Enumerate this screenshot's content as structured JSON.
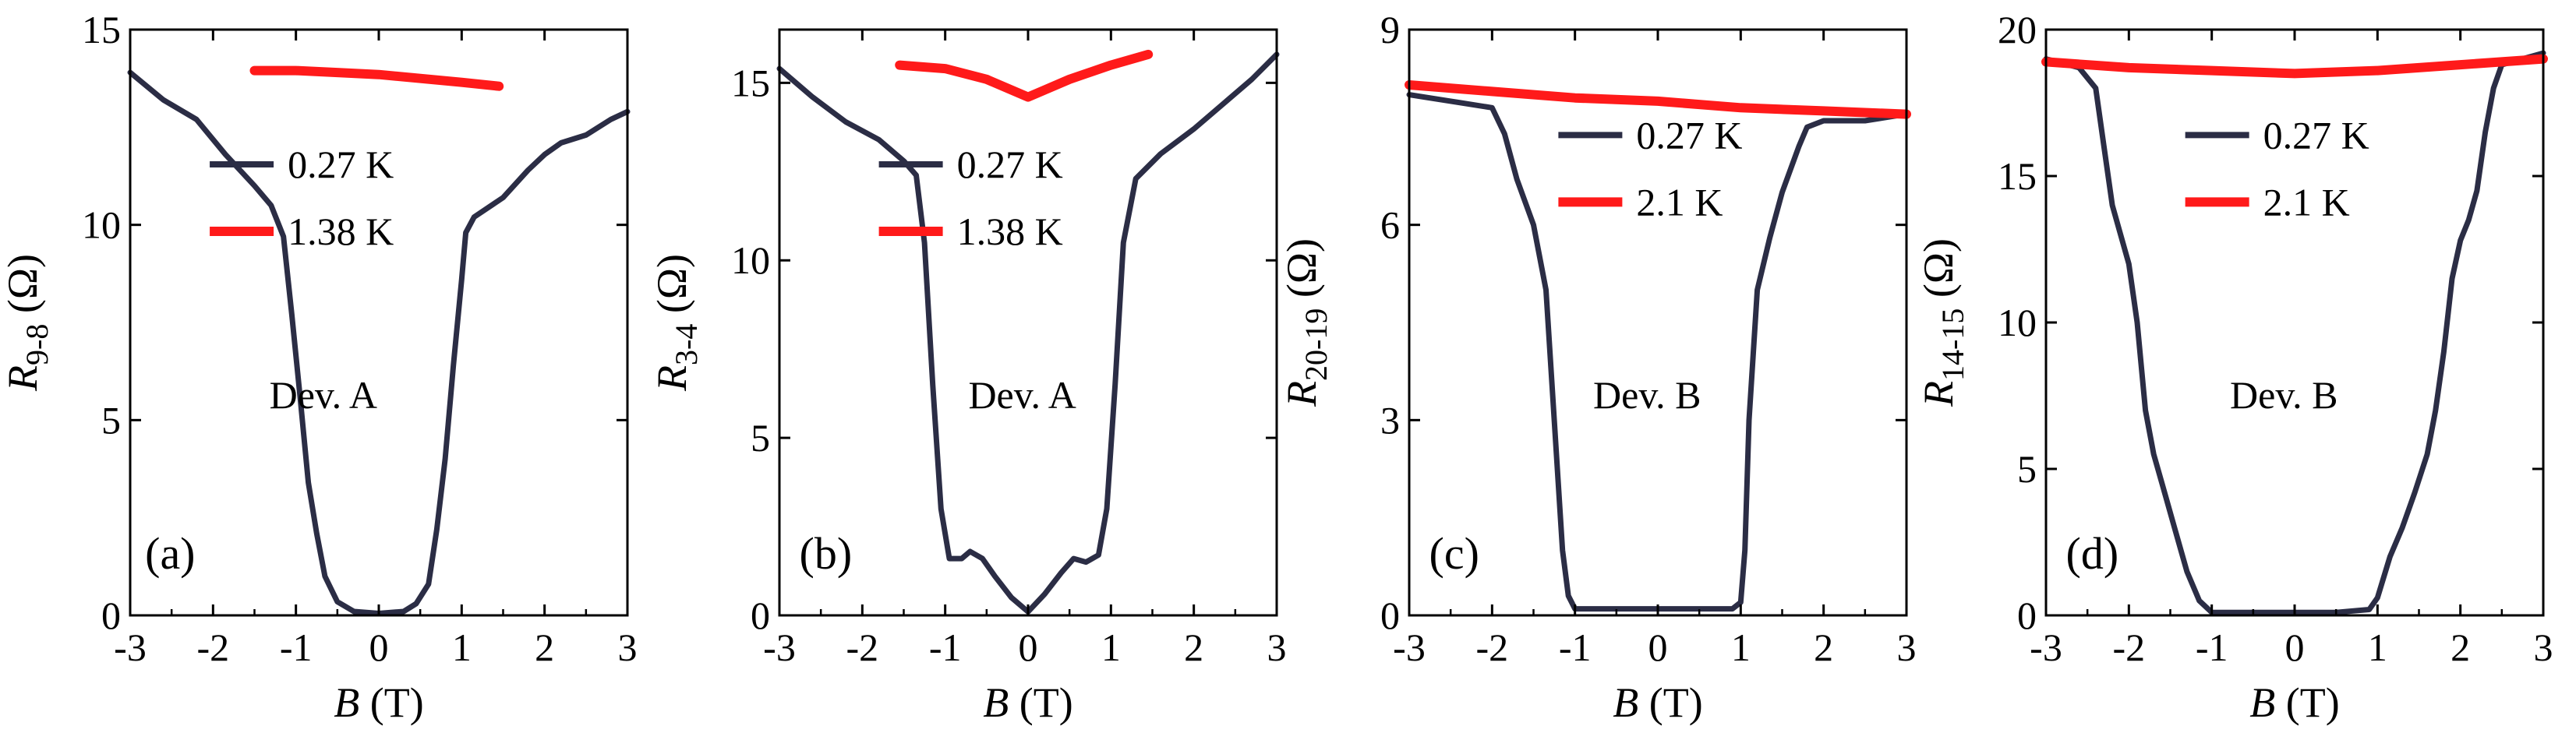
{
  "figure": {
    "description_free": true
  },
  "chart_data": [
    {
      "type": "line",
      "panel_label": "(a)",
      "annotation": "Dev. A",
      "xlabel": {
        "symbol": "B",
        "unit": " (T)"
      },
      "ylabel": {
        "symbol": "R",
        "sub": "9-8",
        "unit": " (Ω)"
      },
      "xlim": [
        -3,
        3
      ],
      "ylim": [
        0,
        15
      ],
      "xticks": [
        "-3",
        "-2",
        "-1",
        "0",
        "1",
        "2",
        "3"
      ],
      "xtick_values": [
        -3,
        -2,
        -1,
        0,
        1,
        2,
        3
      ],
      "yticks": [
        "0",
        "5",
        "10",
        "15"
      ],
      "ytick_values": [
        0,
        5,
        10,
        15
      ],
      "series": [
        {
          "name": "0.27 K",
          "color": "#2b2d45",
          "x": [
            -3.0,
            -2.6,
            -2.2,
            -1.85,
            -1.5,
            -1.3,
            -1.15,
            -1.05,
            -0.95,
            -0.85,
            -0.75,
            -0.65,
            -0.5,
            -0.3,
            0,
            0.3,
            0.45,
            0.6,
            0.7,
            0.8,
            0.9,
            1.0,
            1.05,
            1.15,
            1.5,
            1.8,
            2.0,
            2.2,
            2.5,
            2.8,
            3.0
          ],
          "y": [
            13.9,
            13.2,
            12.7,
            11.8,
            11.0,
            10.5,
            9.7,
            7.7,
            5.6,
            3.4,
            2.1,
            1.0,
            0.35,
            0.1,
            0.05,
            0.1,
            0.3,
            0.8,
            2.2,
            4.0,
            6.4,
            8.6,
            9.8,
            10.2,
            10.7,
            11.4,
            11.8,
            12.1,
            12.3,
            12.7,
            12.9
          ]
        },
        {
          "name": "1.38 K",
          "color": "#ff1a1a",
          "x": [
            -1.5,
            -1.0,
            -0.5,
            0,
            0.5,
            1.0,
            1.45
          ],
          "y": [
            13.95,
            13.95,
            13.9,
            13.85,
            13.75,
            13.65,
            13.55
          ]
        }
      ]
    },
    {
      "type": "line",
      "panel_label": "(b)",
      "annotation": "Dev. A",
      "xlabel": {
        "symbol": "B",
        "unit": " (T)"
      },
      "ylabel": {
        "symbol": "R",
        "sub": "3-4",
        "unit": " (Ω)"
      },
      "xlim": [
        -3,
        3
      ],
      "ylim": [
        0,
        16.5
      ],
      "xticks": [
        "-3",
        "-2",
        "-1",
        "0",
        "1",
        "2",
        "3"
      ],
      "xtick_values": [
        -3,
        -2,
        -1,
        0,
        1,
        2,
        3
      ],
      "yticks": [
        "0",
        "5",
        "10",
        "15"
      ],
      "ytick_values": [
        0,
        5,
        10,
        15
      ],
      "series": [
        {
          "name": "0.27 K",
          "color": "#2b2d45",
          "x": [
            -3.0,
            -2.6,
            -2.2,
            -1.8,
            -1.5,
            -1.35,
            -1.25,
            -1.15,
            -1.05,
            -0.95,
            -0.8,
            -0.7,
            -0.55,
            -0.4,
            -0.2,
            0,
            0.2,
            0.4,
            0.55,
            0.7,
            0.85,
            0.95,
            1.05,
            1.15,
            1.3,
            1.6,
            2.0,
            2.4,
            2.7,
            3.0
          ],
          "y": [
            15.4,
            14.6,
            13.9,
            13.4,
            12.8,
            12.4,
            10.5,
            6.5,
            3.0,
            1.6,
            1.6,
            1.8,
            1.6,
            1.1,
            0.5,
            0.1,
            0.6,
            1.2,
            1.6,
            1.5,
            1.7,
            3.0,
            6.5,
            10.5,
            12.3,
            13.0,
            13.7,
            14.5,
            15.1,
            15.8
          ]
        },
        {
          "name": "1.38 K",
          "color": "#ff1a1a",
          "x": [
            -1.55,
            -1.0,
            -0.5,
            -0.2,
            0,
            0.2,
            0.5,
            1.0,
            1.45
          ],
          "y": [
            15.5,
            15.4,
            15.1,
            14.8,
            14.6,
            14.8,
            15.1,
            15.5,
            15.8
          ]
        }
      ]
    },
    {
      "type": "line",
      "panel_label": "(c)",
      "annotation": "Dev. B",
      "xlabel": {
        "symbol": "B",
        "unit": " (T)"
      },
      "ylabel": {
        "symbol": "R",
        "sub": "20-19",
        "unit": " (Ω)"
      },
      "xlim": [
        -3,
        3
      ],
      "ylim": [
        0,
        9
      ],
      "xticks": [
        "-3",
        "-2",
        "-1",
        "0",
        "1",
        "2",
        "3"
      ],
      "xtick_values": [
        -3,
        -2,
        -1,
        0,
        1,
        2,
        3
      ],
      "yticks": [
        "0",
        "3",
        "6",
        "9"
      ],
      "ytick_values": [
        0,
        3,
        6,
        9
      ],
      "series": [
        {
          "name": "0.27 K",
          "color": "#2b2d45",
          "x": [
            -3.0,
            -2.5,
            -2.0,
            -1.85,
            -1.7,
            -1.5,
            -1.35,
            -1.25,
            -1.15,
            -1.08,
            -1.0,
            -0.9,
            -0.5,
            0,
            0.5,
            0.9,
            1.0,
            1.05,
            1.1,
            1.2,
            1.35,
            1.5,
            1.7,
            1.8,
            2.0,
            2.5,
            3.0
          ],
          "y": [
            8.0,
            7.9,
            7.8,
            7.4,
            6.7,
            6.0,
            5.0,
            3.0,
            1.0,
            0.3,
            0.1,
            0.1,
            0.1,
            0.1,
            0.1,
            0.1,
            0.2,
            1.0,
            3.0,
            5.0,
            5.8,
            6.5,
            7.2,
            7.5,
            7.6,
            7.6,
            7.7
          ]
        },
        {
          "name": "2.1 K",
          "color": "#ff1a1a",
          "x": [
            -3.0,
            -2.0,
            -1.0,
            0,
            1.0,
            2.0,
            3.0
          ],
          "y": [
            8.15,
            8.05,
            7.95,
            7.9,
            7.8,
            7.75,
            7.7
          ]
        }
      ]
    },
    {
      "type": "line",
      "panel_label": "(d)",
      "annotation": "Dev. B",
      "xlabel": {
        "symbol": "B",
        "unit": " (T)"
      },
      "ylabel": {
        "symbol": "R",
        "sub": "14-15",
        "unit": " (Ω)"
      },
      "xlim": [
        -3,
        3
      ],
      "ylim": [
        0,
        20
      ],
      "xticks": [
        "-3",
        "-2",
        "-1",
        "0",
        "1",
        "2",
        "3"
      ],
      "xtick_values": [
        -3,
        -2,
        -1,
        0,
        1,
        2,
        3
      ],
      "yticks": [
        "0",
        "5",
        "10",
        "15",
        "20"
      ],
      "ytick_values": [
        0,
        5,
        10,
        15,
        20
      ],
      "series": [
        {
          "name": "0.27 K",
          "color": "#2b2d45",
          "x": [
            -3.0,
            -2.6,
            -2.4,
            -2.3,
            -2.2,
            -2.1,
            -2.0,
            -1.9,
            -1.8,
            -1.7,
            -1.6,
            -1.45,
            -1.3,
            -1.15,
            -1.0,
            -0.5,
            0,
            0.5,
            0.9,
            1.0,
            1.15,
            1.3,
            1.45,
            1.6,
            1.7,
            1.8,
            1.9,
            2.0,
            2.1,
            2.2,
            2.3,
            2.4,
            2.5,
            3.0
          ],
          "y": [
            19.0,
            18.7,
            18.0,
            16.0,
            14.0,
            13.0,
            12.0,
            10.0,
            7.0,
            5.5,
            4.5,
            3.0,
            1.5,
            0.5,
            0.1,
            0.1,
            0.1,
            0.1,
            0.2,
            0.6,
            2.0,
            3.0,
            4.2,
            5.5,
            7.0,
            9.0,
            11.5,
            12.8,
            13.5,
            14.5,
            16.5,
            18.0,
            18.8,
            19.2
          ]
        },
        {
          "name": "2.1 K",
          "color": "#ff1a1a",
          "x": [
            -3.0,
            -2.0,
            -1.0,
            0,
            1.0,
            2.0,
            3.0
          ],
          "y": [
            18.9,
            18.7,
            18.6,
            18.5,
            18.6,
            18.8,
            19.0
          ]
        }
      ]
    }
  ]
}
